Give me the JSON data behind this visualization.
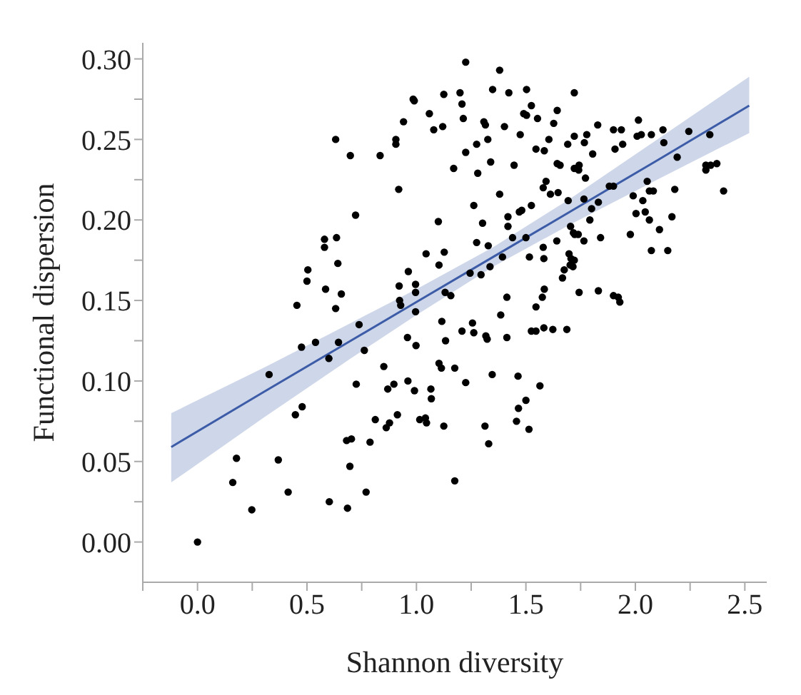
{
  "chart_data": {
    "type": "scatter",
    "xlabel": "Shannon diversity",
    "ylabel": "Functional dispersion",
    "xlim": [
      -0.25,
      2.6
    ],
    "ylim": [
      -0.025,
      0.31
    ],
    "xticks": [
      {
        "value": -0.25,
        "label": null
      },
      {
        "value": 0,
        "label": "0.0"
      },
      {
        "value": 0.25,
        "label": null
      },
      {
        "value": 0.5,
        "label": "0.5"
      },
      {
        "value": 0.75,
        "label": null
      },
      {
        "value": 1,
        "label": "1.0"
      },
      {
        "value": 1.25,
        "label": null
      },
      {
        "value": 1.5,
        "label": "1.5"
      },
      {
        "value": 1.75,
        "label": null
      },
      {
        "value": 2,
        "label": "2.0"
      },
      {
        "value": 2.25,
        "label": null
      },
      {
        "value": 2.5,
        "label": "2.5"
      }
    ],
    "yticks": [
      {
        "value": 0,
        "label": "0.00"
      },
      {
        "value": 0.025,
        "label": null
      },
      {
        "value": 0.05,
        "label": "0.05"
      },
      {
        "value": 0.075,
        "label": null
      },
      {
        "value": 0.1,
        "label": "0.10"
      },
      {
        "value": 0.125,
        "label": null
      },
      {
        "value": 0.15,
        "label": "0.15"
      },
      {
        "value": 0.175,
        "label": null
      },
      {
        "value": 0.2,
        "label": "0.20"
      },
      {
        "value": 0.225,
        "label": null
      },
      {
        "value": 0.25,
        "label": "0.25"
      },
      {
        "value": 0.275,
        "label": null
      },
      {
        "value": 0.3,
        "label": "0.30"
      }
    ],
    "grid": false,
    "legend": false,
    "series": [
      {
        "type": "line",
        "color": "#3d5ca8",
        "marker": "none",
        "x": [
          -0.12,
          0.3,
          0.7,
          1.0,
          1.35,
          1.7,
          2.1,
          2.52
        ],
        "values": [
          0.059,
          0.093,
          0.125,
          0.149,
          0.177,
          0.205,
          0.237,
          0.271
        ],
        "lower": [
          0.037,
          0.077,
          0.114,
          0.141,
          0.171,
          0.197,
          0.225,
          0.254
        ],
        "upper": [
          0.08,
          0.108,
          0.136,
          0.157,
          0.183,
          0.213,
          0.25,
          0.289
        ]
      },
      {
        "color": "#000000",
        "marker": "circle",
        "x": [
          1.225,
          0.985,
          0.99,
          1.125,
          1.199,
          1.208,
          1.214,
          1.059,
          1.079,
          1.12,
          0.941,
          0.906,
          0.906,
          0.834,
          0.698,
          0.631,
          1.225,
          1.17,
          0.919,
          0.722,
          1.1,
          0.58,
          0.58,
          0.635,
          0.641,
          1.044,
          1.127,
          1.103,
          0.504,
          0.5,
          0.585,
          0.657,
          0.963,
          0.921,
          0.996,
          0.996,
          1.131,
          1.157,
          0.454,
          0.923,
          0.631,
          1.38,
          1.348,
          1.422,
          1.503,
          1.721,
          1.525,
          1.49,
          1.503,
          1.553,
          1.643,
          1.308,
          1.315,
          1.402,
          1.627,
          1.828,
          1.9,
          1.936,
          2.014,
          2.008,
          2.027,
          2.073,
          2.126,
          2.244,
          2.34,
          2.13,
          2.191,
          2.322,
          2.344,
          2.372,
          2.322,
          2.403,
          1.326,
          1.275,
          1.28,
          1.339,
          1.446,
          1.474,
          1.546,
          1.584,
          1.605,
          1.691,
          1.721,
          1.778,
          1.767,
          1.643,
          1.656,
          1.721,
          1.743,
          1.741,
          1.772,
          1.805,
          1.907,
          1.942,
          1.592,
          1.579,
          1.647,
          1.612,
          1.38,
          1.693,
          1.765,
          1.831,
          1.881,
          1.9,
          2.054,
          2.064,
          2.082,
          2.18,
          1.99,
          2.034,
          1.262,
          1.525,
          1.47,
          1.481,
          1.418,
          1.302,
          1.418,
          1.8,
          1.792,
          1.841,
          1.704,
          1.717,
          1.723,
          1.739,
          2.003,
          2.045,
          2.064,
          2.167,
          2.11,
          1.977,
          1.439,
          1.5,
          1.275,
          1.328,
          1.579,
          1.641,
          1.765,
          2.073,
          2.148,
          1.697,
          1.706,
          1.721,
          1.702,
          1.715,
          1.675,
          1.667,
          1.393,
          1.336,
          1.516,
          1.582,
          1.295,
          1.245,
          1.413,
          1.584,
          1.575,
          1.546,
          1.743,
          1.831,
          1.9,
          1.922,
          1.929,
          1.385,
          1.256,
          1.262,
          1.208,
          1.317,
          1.323,
          1.413,
          1.525,
          1.546,
          1.582,
          1.623,
          1.687,
          1.175,
          1.225,
          1.346,
          1.464,
          1.564,
          1.5,
          1.466,
          1.457,
          1.514,
          1.313,
          1.33,
          1.175,
          0.928,
          0.996,
          1.116,
          1.133,
          0.998,
          0.959,
          0.738,
          0.762,
          0.644,
          0.6,
          0.539,
          0.475,
          0.327,
          0.478,
          0.447,
          0.851,
          0.725,
          0.869,
          0.897,
          0.961,
          0.991,
          1.066,
          1.068,
          1.103,
          1.114,
          0.812,
          0.862,
          0.877,
          0.913,
          1.015,
          1.041,
          1.046,
          1.125,
          0.681,
          0.703,
          0.788,
          0.696,
          0.77,
          0.685,
          0.602,
          0.414,
          0.369,
          0.178,
          0.161,
          0.248,
          0.0
        ],
        "values": [
          0.298,
          0.275,
          0.274,
          0.278,
          0.279,
          0.272,
          0.263,
          0.266,
          0.256,
          0.258,
          0.261,
          0.25,
          0.247,
          0.24,
          0.24,
          0.25,
          0.242,
          0.232,
          0.219,
          0.203,
          0.199,
          0.188,
          0.183,
          0.189,
          0.173,
          0.179,
          0.18,
          0.172,
          0.169,
          0.162,
          0.157,
          0.154,
          0.168,
          0.159,
          0.16,
          0.155,
          0.155,
          0.153,
          0.147,
          0.15,
          0.145,
          0.293,
          0.281,
          0.279,
          0.281,
          0.279,
          0.271,
          0.266,
          0.265,
          0.263,
          0.268,
          0.261,
          0.259,
          0.258,
          0.26,
          0.259,
          0.256,
          0.256,
          0.262,
          0.252,
          0.253,
          0.253,
          0.256,
          0.255,
          0.253,
          0.248,
          0.239,
          0.234,
          0.234,
          0.235,
          0.231,
          0.218,
          0.25,
          0.247,
          0.229,
          0.236,
          0.234,
          0.253,
          0.244,
          0.243,
          0.25,
          0.247,
          0.252,
          0.253,
          0.248,
          0.235,
          0.234,
          0.232,
          0.234,
          0.231,
          0.226,
          0.241,
          0.244,
          0.247,
          0.224,
          0.22,
          0.217,
          0.216,
          0.216,
          0.212,
          0.213,
          0.211,
          0.221,
          0.221,
          0.224,
          0.218,
          0.218,
          0.219,
          0.215,
          0.212,
          0.209,
          0.209,
          0.205,
          0.206,
          0.202,
          0.198,
          0.196,
          0.207,
          0.2,
          0.189,
          0.196,
          0.192,
          0.191,
          0.191,
          0.204,
          0.205,
          0.2,
          0.202,
          0.194,
          0.191,
          0.189,
          0.189,
          0.186,
          0.184,
          0.183,
          0.187,
          0.187,
          0.181,
          0.181,
          0.179,
          0.176,
          0.175,
          0.172,
          0.171,
          0.169,
          0.164,
          0.177,
          0.171,
          0.177,
          0.176,
          0.166,
          0.167,
          0.152,
          0.157,
          0.152,
          0.146,
          0.155,
          0.156,
          0.153,
          0.152,
          0.149,
          0.141,
          0.136,
          0.13,
          0.131,
          0.128,
          0.126,
          0.127,
          0.131,
          0.131,
          0.133,
          0.132,
          0.132,
          0.108,
          0.099,
          0.104,
          0.103,
          0.097,
          0.088,
          0.083,
          0.075,
          0.07,
          0.072,
          0.061,
          0.038,
          0.147,
          0.143,
          0.137,
          0.125,
          0.122,
          0.127,
          0.135,
          0.119,
          0.124,
          0.114,
          0.124,
          0.121,
          0.104,
          0.084,
          0.079,
          0.109,
          0.098,
          0.095,
          0.098,
          0.1,
          0.094,
          0.095,
          0.089,
          0.111,
          0.108,
          0.076,
          0.071,
          0.074,
          0.079,
          0.076,
          0.077,
          0.074,
          0.072,
          0.063,
          0.064,
          0.062,
          0.047,
          0.031,
          0.021,
          0.025,
          0.031,
          0.051,
          0.052,
          0.037,
          0.02,
          0.0
        ]
      }
    ]
  }
}
